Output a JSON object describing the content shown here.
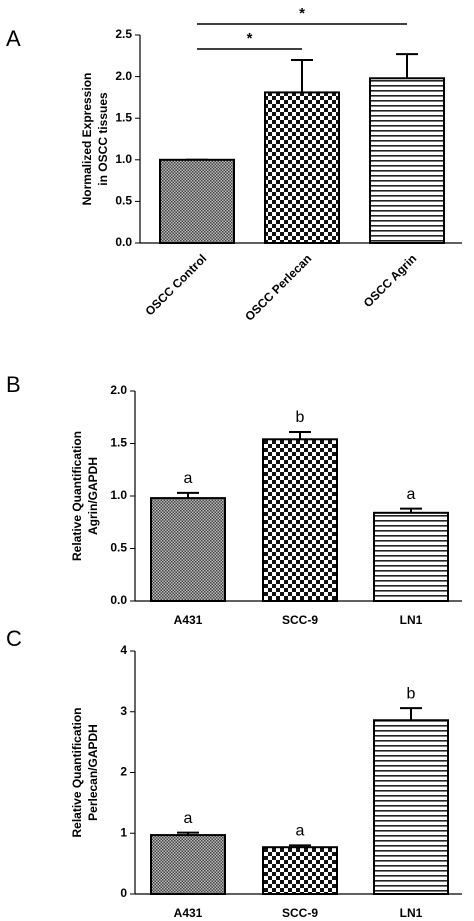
{
  "chart_data": [
    {
      "type": "bar",
      "panel": "A",
      "ylabel": [
        "Normalized Expression",
        "in OSCC tissues"
      ],
      "categories": [
        "OSCC Control",
        "OSCC Perlecan",
        "OSCC Agrin"
      ],
      "values": [
        1.0,
        1.81,
        1.98
      ],
      "errors": [
        0,
        0.39,
        0.29
      ],
      "patterns": [
        "fine-check",
        "checker",
        "h-lines"
      ],
      "ylim": [
        0,
        2.5
      ],
      "yticks": [
        {
          "value": 0,
          "label": "0.0"
        },
        0.5,
        {
          "value": 1,
          "label": "1.0"
        },
        1.5,
        {
          "value": 2,
          "label": "2.0"
        },
        2.5
      ],
      "rotated_labels": true,
      "significance": [
        {
          "pair": [
            0,
            1
          ],
          "label": "*"
        },
        {
          "pair": [
            0,
            2
          ],
          "label": "*"
        }
      ]
    },
    {
      "type": "bar",
      "panel": "B",
      "ylabel": [
        "Relative Quantification",
        "Agrin/GAPDH"
      ],
      "categories": [
        "A431",
        "SCC-9",
        "LN1"
      ],
      "values": [
        0.98,
        1.54,
        0.84
      ],
      "errors": [
        0.05,
        0.07,
        0.04
      ],
      "patterns": [
        "fine-check",
        "checker",
        "h-lines"
      ],
      "bar_labels": [
        "a",
        "b",
        "a"
      ],
      "ylim": [
        0,
        2
      ],
      "yticks": [
        {
          "value": 0,
          "label": "0.0"
        },
        0.5,
        {
          "value": 1,
          "label": "1.0"
        },
        1.5,
        {
          "value": 2,
          "label": "2.0"
        }
      ],
      "rotated_labels": false
    },
    {
      "type": "bar",
      "panel": "C",
      "ylabel": [
        "Relative Quantification",
        "Perlecan/GAPDH"
      ],
      "categories": [
        "A431",
        "SCC-9",
        "LN1"
      ],
      "values": [
        0.97,
        0.77,
        2.86
      ],
      "errors": [
        0.04,
        0.03,
        0.2
      ],
      "patterns": [
        "fine-check",
        "checker",
        "h-lines"
      ],
      "bar_labels": [
        "a",
        "a",
        "b"
      ],
      "ylim": [
        0,
        4
      ],
      "yticks": [
        0,
        1,
        2,
        3,
        4
      ],
      "rotated_labels": false
    }
  ]
}
